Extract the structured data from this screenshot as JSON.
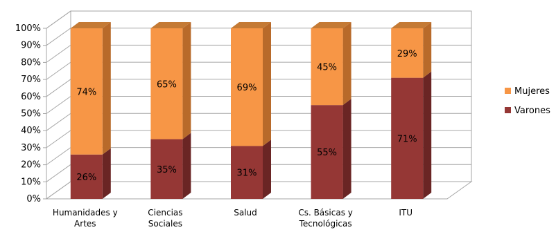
{
  "chart_data": {
    "type": "bar",
    "stacked": true,
    "percent_stacked": true,
    "three_d": true,
    "categories": [
      [
        "Humanidades y",
        "Artes"
      ],
      [
        "Ciencias",
        "Sociales"
      ],
      [
        "Salud"
      ],
      [
        "Cs. Básicas y",
        "Tecnológicas"
      ],
      [
        "ITU"
      ]
    ],
    "series": [
      {
        "name": "Varones",
        "values": [
          26,
          35,
          31,
          55,
          71
        ],
        "labels": [
          "26%",
          "35%",
          "31%",
          "55%",
          "71%"
        ],
        "color": "#953735",
        "side": "#6a2524",
        "top": "#a94543"
      },
      {
        "name": "Mujeres",
        "values": [
          74,
          65,
          69,
          45,
          29
        ],
        "labels": [
          "74%",
          "65%",
          "69%",
          "45%",
          "29%"
        ],
        "color": "#f79646",
        "side": "#b86a2a",
        "top": "#c47a35"
      }
    ],
    "y_ticks": [
      "0%",
      "10%",
      "20%",
      "30%",
      "40%",
      "50%",
      "60%",
      "70%",
      "80%",
      "90%",
      "100%"
    ],
    "ylim": [
      0,
      100
    ],
    "grid": true,
    "legend_position": "right",
    "legend_order": [
      "Mujeres",
      "Varones"
    ]
  }
}
